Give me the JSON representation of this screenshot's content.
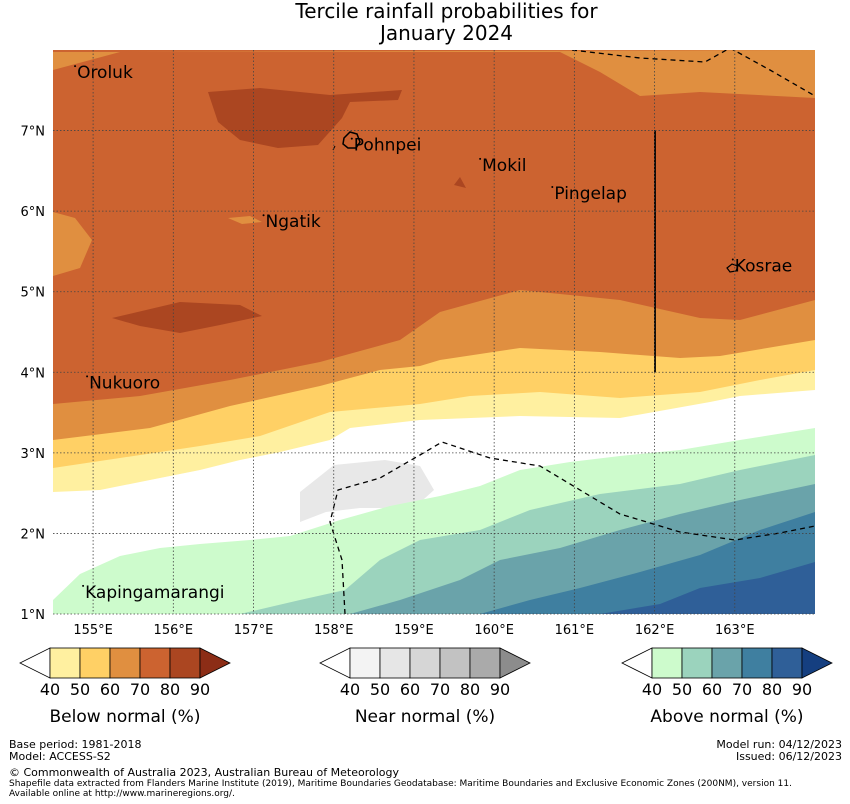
{
  "title": {
    "line1": "Tercile rainfall probabilities for",
    "line2": "January 2024"
  },
  "map": {
    "lon_range": [
      154.5,
      164.0
    ],
    "lat_range": [
      1.0,
      8.0
    ],
    "lon_ticks": [
      "155°E",
      "156°E",
      "157°E",
      "158°E",
      "159°E",
      "160°E",
      "161°E",
      "162°E",
      "163°E"
    ],
    "lat_ticks": [
      "1°N",
      "2°N",
      "3°N",
      "4°N",
      "5°N",
      "6°N",
      "7°N"
    ],
    "places": [
      {
        "name": "Oroluk",
        "lon": 154.8,
        "lat": 7.7
      },
      {
        "name": "Pohnpei",
        "lon": 158.25,
        "lat": 6.8
      },
      {
        "name": "Mokil",
        "lon": 159.85,
        "lat": 6.55
      },
      {
        "name": "Pingelap",
        "lon": 160.75,
        "lat": 6.2
      },
      {
        "name": "Ngatik",
        "lon": 157.15,
        "lat": 5.85
      },
      {
        "name": "Kosrae",
        "lon": 163.0,
        "lat": 5.3
      },
      {
        "name": "Nukuoro",
        "lon": 154.95,
        "lat": 3.85
      },
      {
        "name": "Kapingamarangi",
        "lon": 154.9,
        "lat": 1.25
      }
    ],
    "colors": {
      "below": [
        "#fff0a0",
        "#ffd065",
        "#e08f40",
        "#cc6330",
        "#ab4621",
        "#8c2d16"
      ],
      "near": [
        "#f3f3f3",
        "#e6e6e6",
        "#d6d6d6",
        "#c2c2c2",
        "#aaaaaa",
        "#8c8c8c"
      ],
      "above": [
        "#cdfbcc",
        "#9bd3bd",
        "#6aa3aa",
        "#3f7fa0",
        "#2f5f98",
        "#153f80"
      ]
    },
    "categories": [
      {
        "category": "above >= 70",
        "color": "#3f7fa0"
      },
      {
        "category": "above 60-70",
        "color": "#6aa3aa"
      },
      {
        "category": "above 50-60",
        "color": "#9bd3bd"
      },
      {
        "category": "above 40-50",
        "color": "#cdfbcc"
      },
      {
        "category": "near 40-50",
        "color": "#e8e8e8"
      },
      {
        "category": "below 40-50",
        "color": "#fff0a0"
      },
      {
        "category": "below 50-60",
        "color": "#ffd065"
      },
      {
        "category": "below 60-70",
        "color": "#e08f40"
      },
      {
        "category": "below 70-80",
        "color": "#cc6330"
      },
      {
        "category": "below 80-90",
        "color": "#ab4621"
      }
    ]
  },
  "colorbars": [
    {
      "key": "below",
      "label": "Below normal (%)",
      "ticks": [
        "40",
        "50",
        "60",
        "70",
        "80",
        "90"
      ]
    },
    {
      "key": "near",
      "label": "Near normal (%)",
      "ticks": [
        "40",
        "50",
        "60",
        "70",
        "80",
        "90"
      ]
    },
    {
      "key": "above",
      "label": "Above normal (%)",
      "ticks": [
        "40",
        "50",
        "60",
        "70",
        "80",
        "90"
      ]
    }
  ],
  "footer": {
    "base_period": "Base period: 1981-2018",
    "model": "Model: ACCESS-S2",
    "model_run": "Model run: 04/12/2023",
    "issued": "Issued: 06/12/2023",
    "copyright": "© Commonwealth of Australia 2023, Australian Bureau of Meteorology",
    "shapefile": "Shapefile data extracted from Flanders Marine Institute (2019), Maritime Boundaries Geodatabase: Maritime Boundaries and Exclusive Economic Zones (200NM), version 11.",
    "available": "Available online at http://www.marineregions.org/."
  }
}
